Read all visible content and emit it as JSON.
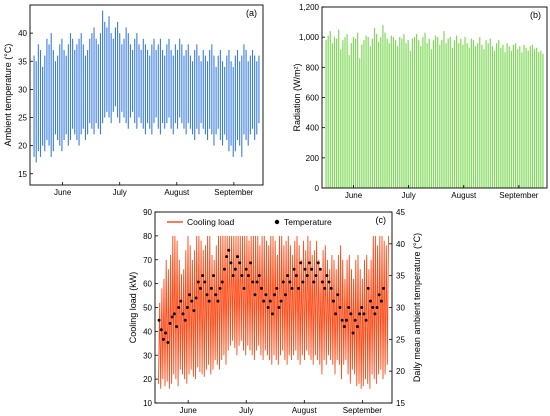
{
  "chart_data": [
    {
      "id": "a",
      "type": "line",
      "panel_label": "(a)",
      "ylabel": "Ambient temperature (°C)",
      "ylim": [
        13,
        45
      ],
      "yticks": [
        15,
        20,
        25,
        30,
        35,
        40
      ],
      "x_categories": [
        "June",
        "July",
        "August",
        "September"
      ],
      "series": [
        {
          "color": "#3a7de0",
          "description_hourly_band_daily_min_max": true,
          "daily_min": [
            18,
            17,
            19,
            18,
            20,
            19,
            21,
            20,
            18,
            19,
            22,
            21,
            20,
            19,
            21,
            22,
            20,
            21,
            23,
            22,
            21,
            20,
            22,
            23,
            21,
            22,
            24,
            23,
            22,
            24,
            23,
            22,
            24,
            25,
            26,
            25,
            24,
            26,
            27,
            25,
            24,
            26,
            25,
            24,
            23,
            25,
            26,
            24,
            23,
            25,
            24,
            23,
            22,
            24,
            23,
            22,
            24,
            25,
            23,
            22,
            24,
            23,
            24,
            25,
            23,
            22,
            24,
            23,
            25,
            24,
            23,
            22,
            24,
            23,
            22,
            21,
            23,
            22,
            24,
            23,
            22,
            21,
            23,
            22,
            20,
            22,
            23,
            21,
            20,
            22,
            21,
            19,
            20,
            18,
            19,
            21,
            20,
            18,
            22,
            21,
            20,
            22,
            23,
            21,
            22,
            24
          ],
          "daily_max": [
            36,
            35,
            38,
            37,
            34,
            36,
            39,
            38,
            40,
            37,
            35,
            36,
            38,
            39,
            37,
            36,
            38,
            40,
            39,
            37,
            38,
            39,
            40,
            38,
            36,
            37,
            39,
            40,
            41,
            39,
            38,
            40,
            44,
            42,
            41,
            43,
            40,
            39,
            41,
            42,
            40,
            38,
            39,
            41,
            40,
            38,
            37,
            39,
            40,
            38,
            37,
            39,
            38,
            37,
            36,
            38,
            39,
            37,
            38,
            39,
            37,
            36,
            38,
            39,
            37,
            36,
            38,
            37,
            39,
            38,
            36,
            37,
            38,
            36,
            35,
            37,
            38,
            36,
            35,
            37,
            36,
            35,
            37,
            38,
            36,
            34,
            36,
            37,
            35,
            34,
            36,
            37,
            35,
            34,
            36,
            37,
            35,
            36,
            38,
            37,
            35,
            36,
            37,
            36,
            35,
            36
          ]
        }
      ]
    },
    {
      "id": "b",
      "type": "bar",
      "panel_label": "(b)",
      "ylabel": "Radiation (W/m²)",
      "ylim": [
        0,
        1200
      ],
      "yticks": [
        0,
        200,
        400,
        600,
        800,
        1000,
        1200
      ],
      "ytick_labels": [
        "0",
        "200",
        "400",
        "600",
        "800",
        "1,000",
        "1,200"
      ],
      "x_categories": [
        "June",
        "July",
        "August",
        "September"
      ],
      "series": [
        {
          "color": "#7ed957",
          "daily_peak": [
            980,
            1010,
            1040,
            960,
            1000,
            990,
            1050,
            920,
            980,
            1000,
            1020,
            880,
            960,
            1000,
            990,
            1030,
            860,
            950,
            980,
            1010,
            1000,
            940,
            990,
            1060,
            1020,
            970,
            1000,
            1080,
            1030,
            990,
            960,
            1010,
            1000,
            980,
            940,
            1000,
            990,
            1020,
            960,
            980,
            910,
            990,
            1000,
            1020,
            980,
            940,
            1000,
            1030,
            960,
            990,
            920,
            980,
            1010,
            1000,
            950,
            980,
            1040,
            960,
            990,
            1000,
            930,
            980,
            1010,
            960,
            990,
            950,
            1000,
            960,
            930,
            990,
            980,
            940,
            960,
            1000,
            950,
            920,
            980,
            960,
            990,
            940,
            910,
            960,
            980,
            930,
            950,
            900,
            960,
            940,
            910,
            950,
            960,
            920,
            940,
            900,
            950,
            930,
            910,
            940,
            950,
            920,
            930,
            900,
            910,
            890
          ]
        }
      ]
    },
    {
      "id": "c",
      "type": "line",
      "panel_label": "(c)",
      "ylabel": "Cooling load (kW)",
      "y2label": "Daily mean ambient temperature (°C)",
      "ylim": [
        10,
        90
      ],
      "yticks": [
        10,
        20,
        30,
        40,
        50,
        60,
        70,
        80,
        90
      ],
      "y2lim": [
        15,
        45
      ],
      "y2ticks": [
        15,
        20,
        25,
        30,
        35,
        40,
        45
      ],
      "x_categories": [
        "June",
        "July",
        "August",
        "September"
      ],
      "legend": [
        "Cooling load",
        "Temperature"
      ],
      "series": [
        {
          "name": "Cooling load",
          "color": "#ff4d1a",
          "daily_min": [
            18,
            16,
            20,
            17,
            19,
            16,
            18,
            22,
            20,
            17,
            24,
            22,
            20,
            18,
            22,
            24,
            21,
            20,
            25,
            23,
            22,
            21,
            24,
            26,
            22,
            24,
            28,
            26,
            24,
            28,
            30,
            26,
            32,
            34,
            36,
            33,
            30,
            34,
            36,
            32,
            30,
            34,
            32,
            30,
            28,
            32,
            34,
            30,
            28,
            32,
            30,
            28,
            26,
            30,
            28,
            26,
            30,
            32,
            28,
            26,
            30,
            28,
            30,
            32,
            28,
            26,
            30,
            28,
            32,
            30,
            28,
            26,
            30,
            28,
            26,
            22,
            28,
            26,
            30,
            28,
            26,
            22,
            28,
            26,
            20,
            26,
            28,
            22,
            18,
            24,
            22,
            17,
            18,
            16,
            17,
            20,
            18,
            16,
            22,
            20,
            18,
            22,
            24,
            20,
            22,
            26
          ],
          "daily_max": [
            52,
            58,
            62,
            70,
            66,
            72,
            80,
            80,
            78,
            70,
            64,
            66,
            74,
            80,
            76,
            70,
            74,
            80,
            80,
            78,
            74,
            76,
            80,
            80,
            72,
            70,
            76,
            80,
            80,
            80,
            80,
            80,
            80,
            80,
            80,
            80,
            80,
            80,
            80,
            80,
            80,
            78,
            80,
            80,
            80,
            80,
            76,
            80,
            80,
            78,
            76,
            80,
            80,
            78,
            72,
            80,
            80,
            76,
            78,
            80,
            76,
            72,
            78,
            80,
            76,
            70,
            78,
            74,
            80,
            78,
            72,
            74,
            78,
            70,
            66,
            74,
            76,
            70,
            66,
            72,
            70,
            66,
            72,
            76,
            70,
            62,
            70,
            72,
            66,
            62,
            70,
            72,
            66,
            62,
            70,
            72,
            66,
            70,
            80,
            80,
            76,
            80,
            80,
            78,
            76,
            80
          ]
        },
        {
          "name": "Temperature",
          "color": "#000000",
          "daily_mean": [
            28,
            26.5,
            25,
            26,
            24.5,
            27.5,
            28.5,
            29,
            27,
            30,
            31,
            29,
            28,
            30,
            32,
            31,
            29.5,
            31.5,
            34,
            33,
            35,
            34,
            32,
            31,
            33,
            35,
            32,
            31,
            33,
            34,
            36,
            38,
            39,
            37,
            35,
            36,
            38,
            37,
            35,
            33,
            36,
            35,
            37,
            34,
            32,
            34,
            35,
            33,
            31,
            32,
            30,
            31,
            29,
            32,
            33,
            30,
            31,
            34,
            32,
            35,
            34,
            33,
            36,
            35,
            33,
            37,
            34,
            36,
            35,
            37,
            36,
            34,
            35,
            37,
            36,
            34,
            33,
            35,
            34,
            33,
            31,
            29,
            32,
            30,
            28,
            27,
            28,
            30,
            29,
            26,
            28,
            27,
            29,
            30,
            29,
            28,
            33,
            31,
            30,
            29,
            30,
            32,
            31,
            33
          ]
        }
      ]
    }
  ]
}
